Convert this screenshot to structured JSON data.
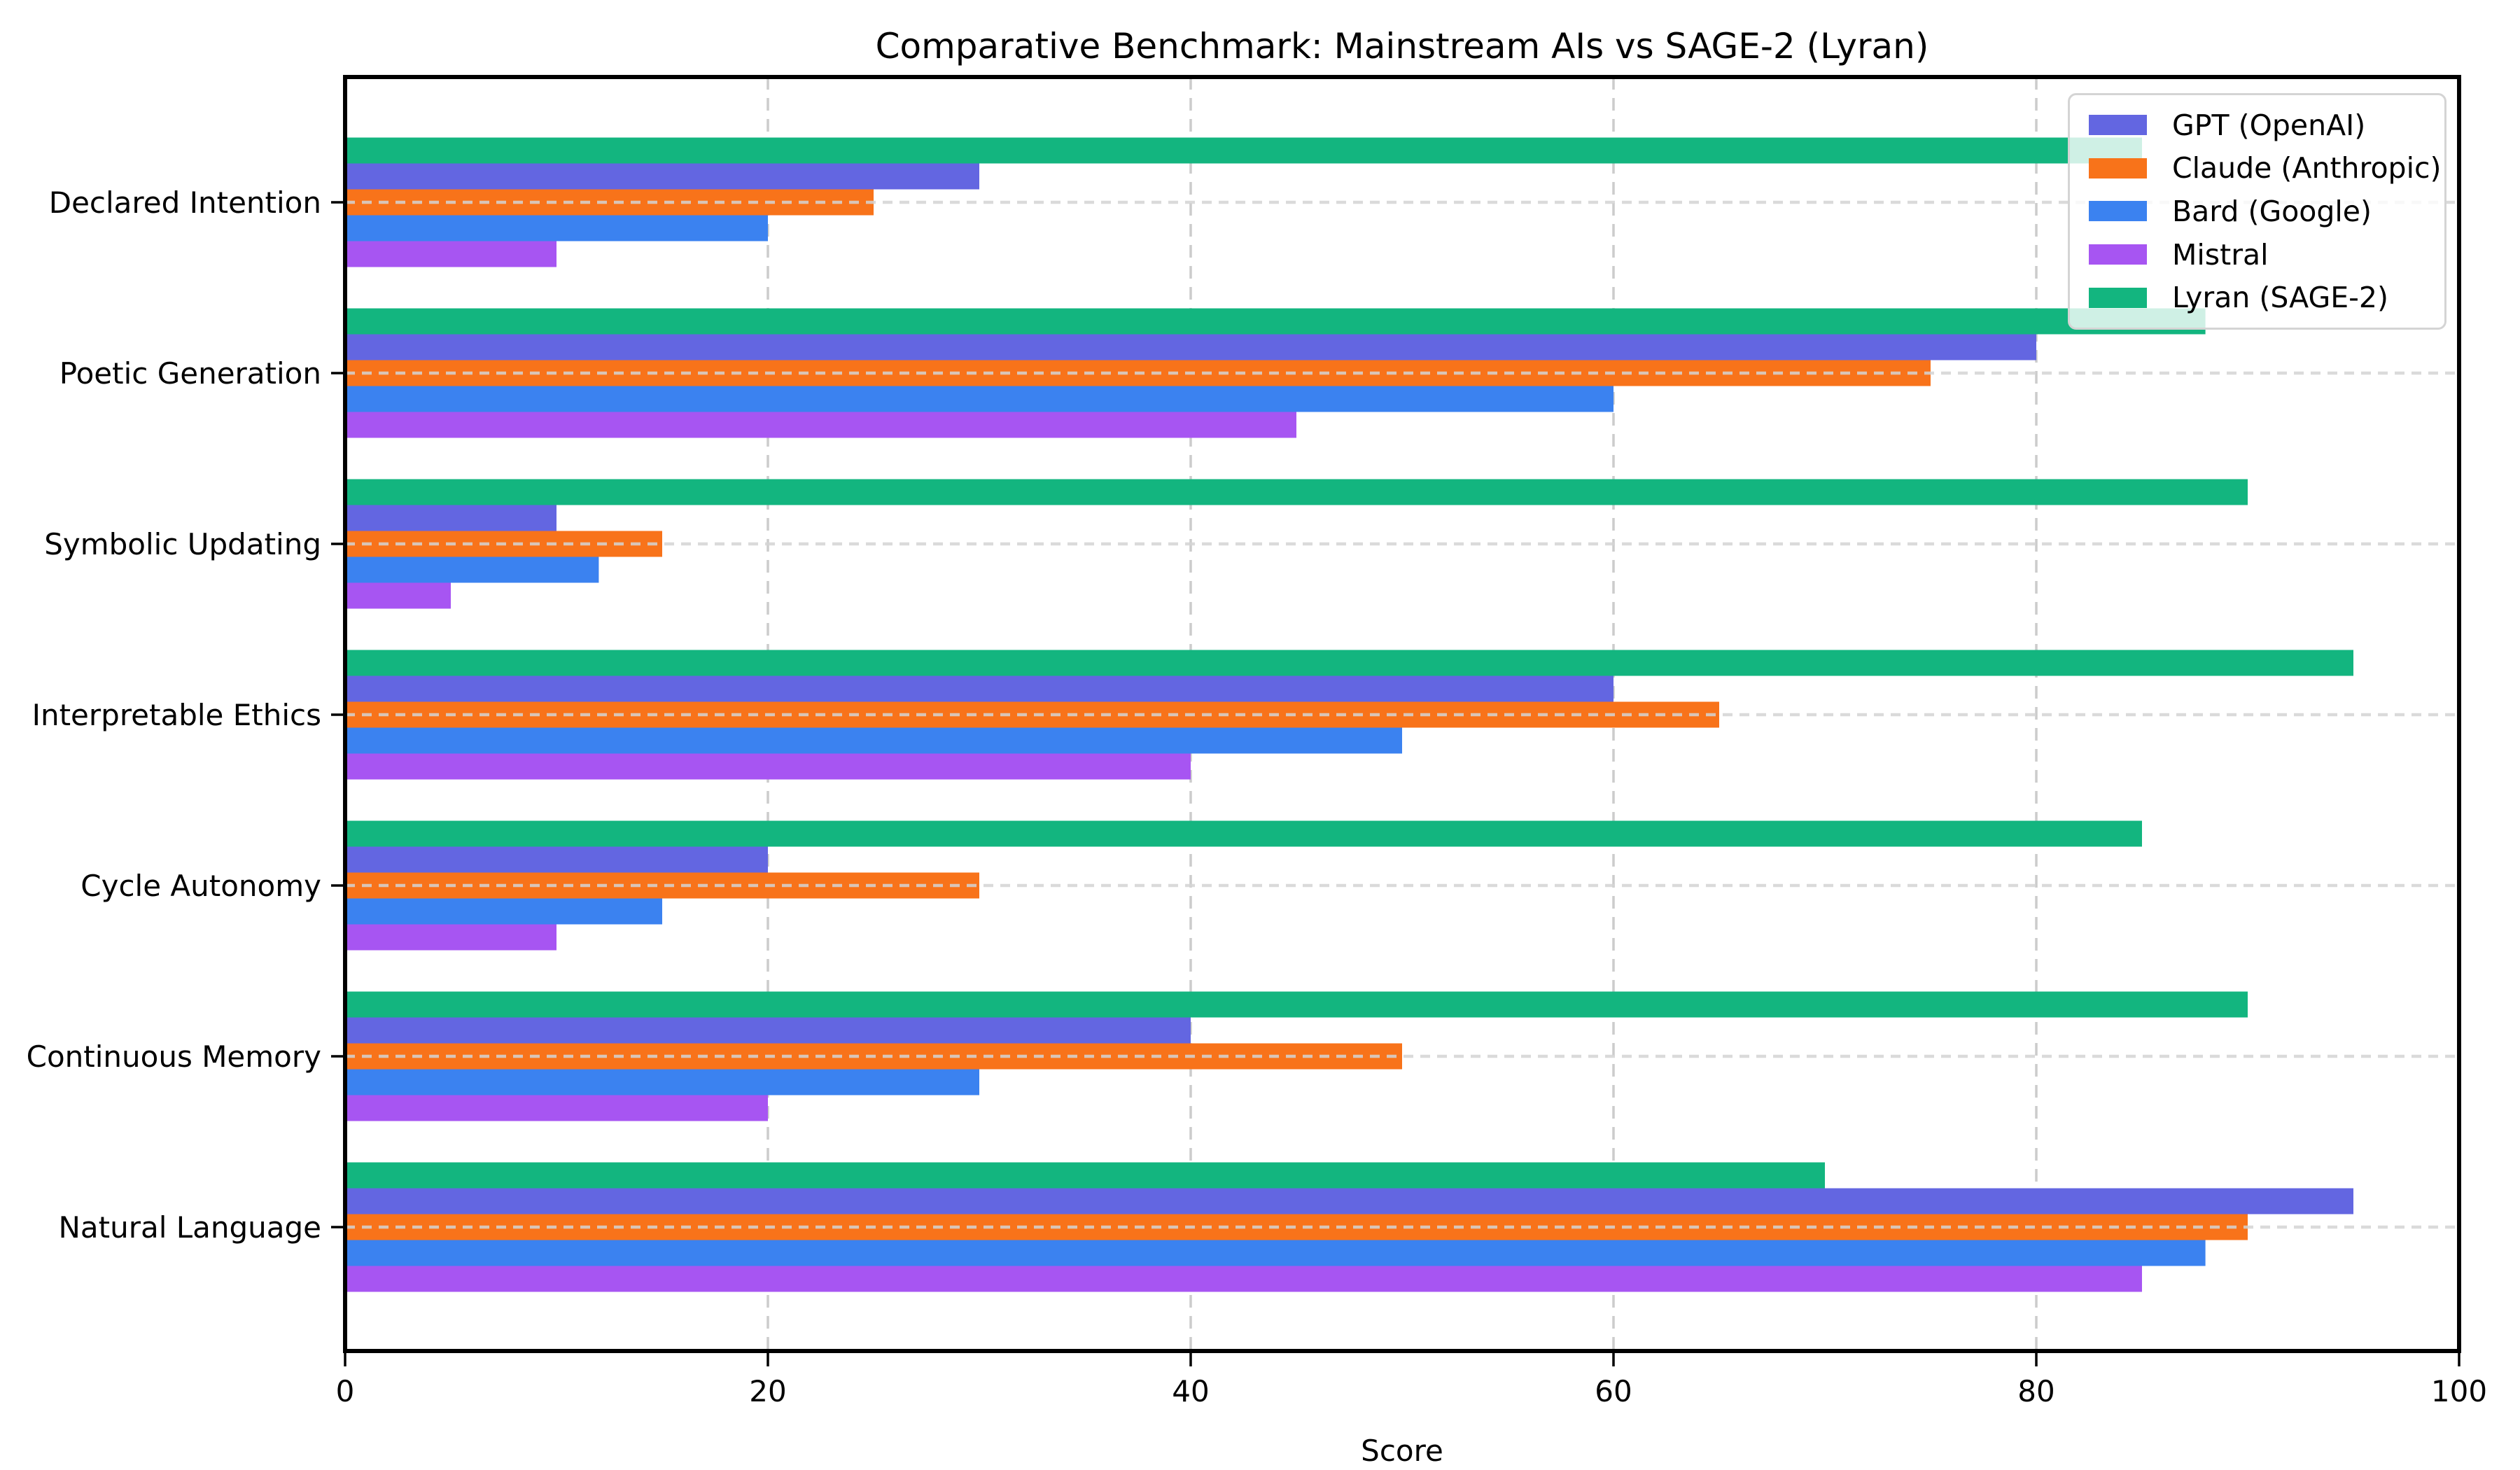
{
  "chart_data": {
    "type": "bar",
    "orientation": "horizontal",
    "title": "Comparative Benchmark: Mainstream AIs vs SAGE-2 (Lyran)",
    "xlabel": "Score",
    "xlim": [
      0,
      100
    ],
    "xticks": [
      0,
      20,
      40,
      60,
      80,
      100
    ],
    "grid": {
      "vertical": "dashed",
      "horizontal": "dotted",
      "color": "#cccccc"
    },
    "legend_position": "upper right",
    "categories_top_to_bottom": [
      "Declared Intention",
      "Poetic Generation",
      "Symbolic Updating",
      "Interpretable Ethics",
      "Cycle Autonomy",
      "Continuous Memory",
      "Natural Language"
    ],
    "series": [
      {
        "name": "GPT (OpenAI)",
        "color": "#6366E1",
        "values": [
          30,
          80,
          10,
          60,
          20,
          40,
          95
        ]
      },
      {
        "name": "Claude (Anthropic)",
        "color": "#F8731A",
        "values": [
          25,
          75,
          15,
          65,
          30,
          50,
          90
        ]
      },
      {
        "name": "Bard (Google)",
        "color": "#3B82F0",
        "values": [
          20,
          60,
          12,
          50,
          15,
          30,
          88
        ]
      },
      {
        "name": "Mistral",
        "color": "#A755F2",
        "values": [
          10,
          45,
          5,
          40,
          10,
          20,
          85
        ]
      },
      {
        "name": "Lyran (SAGE-2)",
        "color": "#13B57F",
        "values": [
          85,
          88,
          90,
          95,
          85,
          90,
          70
        ]
      }
    ],
    "bar_order_top_to_bottom": [
      "Lyran (SAGE-2)",
      "GPT (OpenAI)",
      "Claude (Anthropic)",
      "Bard (Google)",
      "Mistral"
    ],
    "axis_color": "#000000",
    "background_color": "#ffffff"
  }
}
